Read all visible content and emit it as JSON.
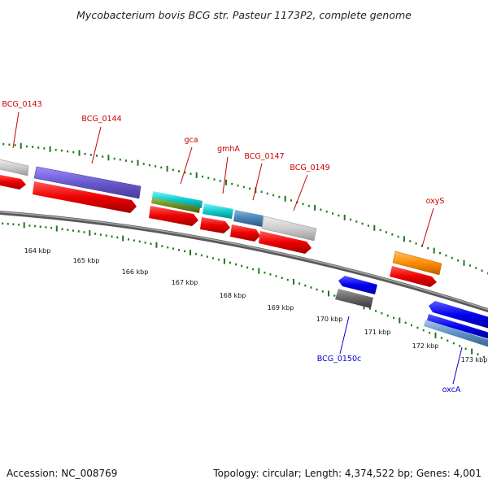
{
  "title": "Mycobacterium bovis BCG str. Pasteur 1173P2, complete genome",
  "footer": {
    "accession": "Accession: NC_008769",
    "summary": "Topology: circular; Length: 4,374,522 bp; Genes: 4,001"
  },
  "ticks": [
    "164 kbp",
    "165 kbp",
    "166 kbp",
    "167 kbp",
    "168 kbp",
    "169 kbp",
    "170 kbp",
    "171 kbp",
    "172 kbp",
    "173 kbp"
  ],
  "gene_labels": [
    {
      "text": "BCG_0143",
      "color": "#cc0000"
    },
    {
      "text": "BCG_0144",
      "color": "#cc0000"
    },
    {
      "text": "gca",
      "color": "#cc0000"
    },
    {
      "text": "gmhA",
      "color": "#cc0000"
    },
    {
      "text": "BCG_0147",
      "color": "#cc0000"
    },
    {
      "text": "BCG_0149",
      "color": "#cc0000"
    },
    {
      "text": "oxyS",
      "color": "#cc0000"
    },
    {
      "text": "BCG_0150c",
      "color": "#0000cc"
    },
    {
      "text": "oxcA",
      "color": "#0000cc"
    }
  ],
  "colors": {
    "backbone": "#808080",
    "dotted_track": "#1a7a1a",
    "cds_forward": "#ee0000",
    "cds_reverse": "#0000ee",
    "label_forward": "#cc0000",
    "label_reverse": "#0000cc"
  }
}
